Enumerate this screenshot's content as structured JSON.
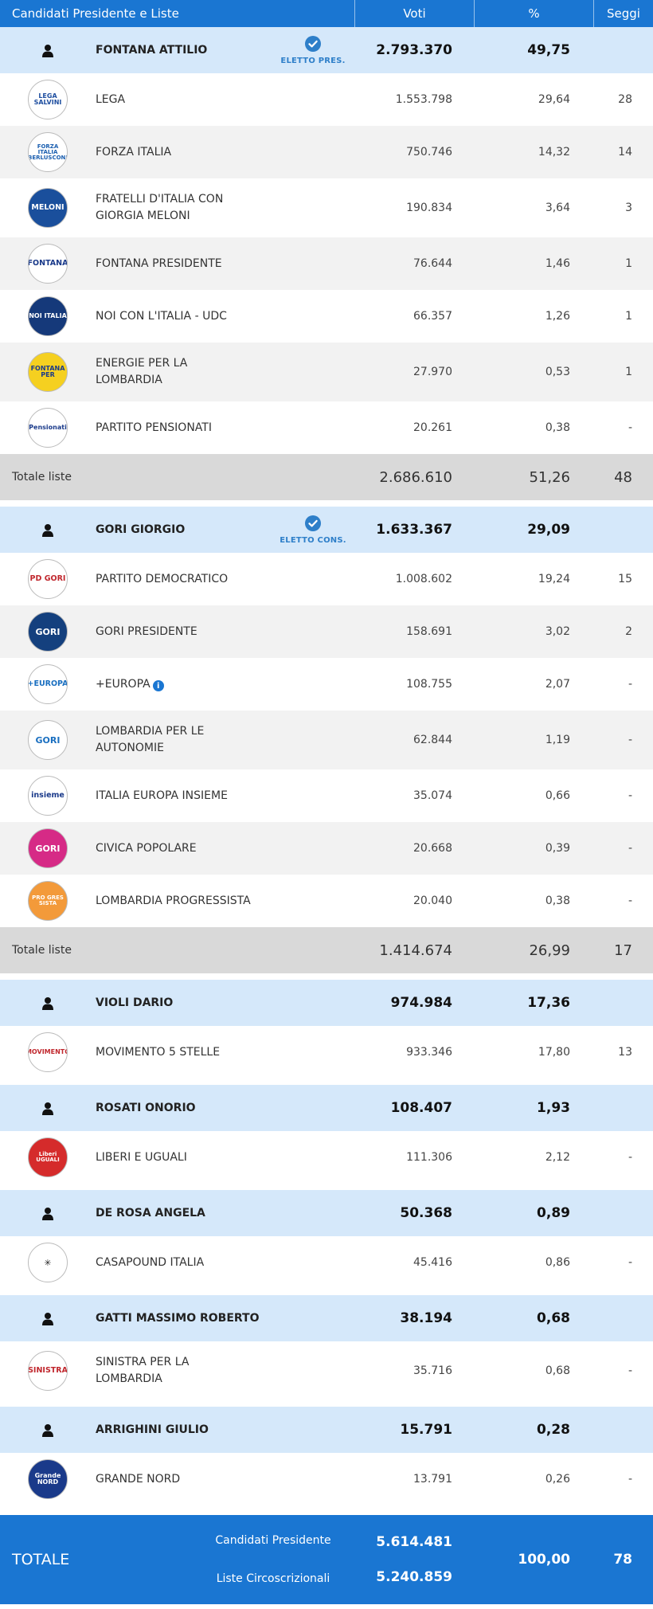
{
  "header": {
    "name": "Candidati Presidente e Liste",
    "voti": "Voti",
    "pct": "%",
    "seggi": "Seggi"
  },
  "blocks": [
    {
      "candidate": {
        "name": "FONTANA ATTILIO",
        "elected": "ELETTO PRES.",
        "votes": "2.793.370",
        "pct": "49,75"
      },
      "lists": [
        {
          "name": "LEGA",
          "votes": "1.553.798",
          "pct": "29,64",
          "seggi": "28",
          "logo": {
            "text": "LEGA SALVINI",
            "bg": "#ffffff",
            "fg": "#1f4fa0",
            "icon": "lega-logo-icon"
          }
        },
        {
          "name": "FORZA ITALIA",
          "votes": "750.746",
          "pct": "14,32",
          "seggi": "14",
          "logo": {
            "text": "FORZA ITALIA BERLUSCONI",
            "bg": "#ffffff",
            "fg": "#1b5fb0",
            "icon": "forza-italia-logo-icon"
          }
        },
        {
          "name": "FRATELLI D'ITALIA CON GIORGIA MELONI",
          "votes": "190.834",
          "pct": "3,64",
          "seggi": "3",
          "logo": {
            "text": "MELONI",
            "bg": "#1a4f9c",
            "fg": "#ffffff",
            "icon": "fratelli-italia-logo-icon"
          }
        },
        {
          "name": "FONTANA PRESIDENTE",
          "votes": "76.644",
          "pct": "1,46",
          "seggi": "1",
          "logo": {
            "text": "FONTANA",
            "bg": "#ffffff",
            "fg": "#1a3a8a",
            "icon": "fontana-presidente-logo-icon"
          }
        },
        {
          "name": "NOI CON L'ITALIA - UDC",
          "votes": "66.357",
          "pct": "1,26",
          "seggi": "1",
          "logo": {
            "text": "NOI ITALIA",
            "bg": "#15397a",
            "fg": "#ffffff",
            "icon": "noi-italia-logo-icon"
          }
        },
        {
          "name": "ENERGIE PER LA LOMBARDIA",
          "votes": "27.970",
          "pct": "0,53",
          "seggi": "1",
          "logo": {
            "text": "FONTANA PER",
            "bg": "#f5d020",
            "fg": "#1a3a8a",
            "icon": "energie-lombardia-logo-icon"
          }
        },
        {
          "name": "PARTITO PENSIONATI",
          "votes": "20.261",
          "pct": "0,38",
          "seggi": "-",
          "logo": {
            "text": "Pensionati",
            "bg": "#ffffff",
            "fg": "#1a3a8a",
            "icon": "partito-pensionati-logo-icon"
          }
        }
      ],
      "total": {
        "label": "Totale liste",
        "votes": "2.686.610",
        "pct": "51,26",
        "seggi": "48"
      }
    },
    {
      "candidate": {
        "name": "GORI GIORGIO",
        "elected": "ELETTO CONS.",
        "votes": "1.633.367",
        "pct": "29,09"
      },
      "lists": [
        {
          "name": "PARTITO DEMOCRATICO",
          "votes": "1.008.602",
          "pct": "19,24",
          "seggi": "15",
          "logo": {
            "text": "PD GORI",
            "bg": "#ffffff",
            "fg": "#c0272d",
            "icon": "pd-logo-icon"
          }
        },
        {
          "name": "GORI PRESIDENTE",
          "votes": "158.691",
          "pct": "3,02",
          "seggi": "2",
          "logo": {
            "text": "GORI",
            "bg": "#14407e",
            "fg": "#ffffff",
            "icon": "gori-presidente-logo-icon"
          }
        },
        {
          "name": "+EUROPA",
          "votes": "108.755",
          "pct": "2,07",
          "seggi": "-",
          "info": true,
          "logo": {
            "text": "+EUROPA",
            "bg": "#ffffff",
            "fg": "#1a6fc0",
            "icon": "piu-europa-logo-icon"
          }
        },
        {
          "name": "LOMBARDIA PER LE AUTONOMIE",
          "votes": "62.844",
          "pct": "1,19",
          "seggi": "-",
          "logo": {
            "text": "GORI",
            "bg": "#ffffff",
            "fg": "#1a6fc0",
            "icon": "lombardia-autonomie-logo-icon"
          }
        },
        {
          "name": "ITALIA EUROPA INSIEME",
          "votes": "35.074",
          "pct": "0,66",
          "seggi": "-",
          "logo": {
            "text": "insieme",
            "bg": "#ffffff",
            "fg": "#1a3a8a",
            "icon": "italia-europa-insieme-logo-icon"
          }
        },
        {
          "name": "CIVICA POPOLARE",
          "votes": "20.668",
          "pct": "0,39",
          "seggi": "-",
          "logo": {
            "text": "GORI",
            "bg": "#d62a86",
            "fg": "#ffffff",
            "icon": "civica-popolare-logo-icon"
          }
        },
        {
          "name": "LOMBARDIA PROGRESSISTA",
          "votes": "20.040",
          "pct": "0,38",
          "seggi": "-",
          "logo": {
            "text": "PRO GRES SISTA",
            "bg": "#f39a3a",
            "fg": "#ffffff",
            "icon": "lombardia-progressista-logo-icon"
          }
        }
      ],
      "total": {
        "label": "Totale liste",
        "votes": "1.414.674",
        "pct": "26,99",
        "seggi": "17"
      }
    },
    {
      "candidate": {
        "name": "VIOLI DARIO",
        "elected": "",
        "votes": "974.984",
        "pct": "17,36"
      },
      "lists": [
        {
          "name": "MOVIMENTO 5 STELLE",
          "votes": "933.346",
          "pct": "17,80",
          "seggi": "13",
          "logo": {
            "text": "MOVIMENTO",
            "bg": "#ffffff",
            "fg": "#c0272d",
            "icon": "m5s-logo-icon"
          }
        }
      ]
    },
    {
      "candidate": {
        "name": "ROSATI ONORIO",
        "elected": "",
        "votes": "108.407",
        "pct": "1,93"
      },
      "lists": [
        {
          "name": "LIBERI E UGUALI",
          "votes": "111.306",
          "pct": "2,12",
          "seggi": "-",
          "logo": {
            "text": "Liberi UGUALI",
            "bg": "#d52b2b",
            "fg": "#ffffff",
            "icon": "liberi-uguali-logo-icon"
          }
        }
      ]
    },
    {
      "candidate": {
        "name": "DE ROSA ANGELA",
        "elected": "",
        "votes": "50.368",
        "pct": "0,89"
      },
      "lists": [
        {
          "name": "CASAPOUND ITALIA",
          "votes": "45.416",
          "pct": "0,86",
          "seggi": "-",
          "logo": {
            "text": "✳",
            "bg": "#ffffff",
            "fg": "#222222",
            "icon": "casapound-logo-icon"
          }
        }
      ]
    },
    {
      "candidate": {
        "name": "GATTI MASSIMO ROBERTO",
        "elected": "",
        "votes": "38.194",
        "pct": "0,68"
      },
      "lists": [
        {
          "name": "SINISTRA PER LA LOMBARDIA",
          "votes": "35.716",
          "pct": "0,68",
          "seggi": "-",
          "logo": {
            "text": "SINISTRA",
            "bg": "#ffffff",
            "fg": "#c0272d",
            "icon": "sinistra-lombardia-logo-icon"
          }
        }
      ]
    },
    {
      "candidate": {
        "name": "ARRIGHINI GIULIO",
        "elected": "",
        "votes": "15.791",
        "pct": "0,28"
      },
      "lists": [
        {
          "name": "GRANDE NORD",
          "votes": "13.791",
          "pct": "0,26",
          "seggi": "-",
          "logo": {
            "text": "Grande NORD",
            "bg": "#1a3a8a",
            "fg": "#ffffff",
            "icon": "grande-nord-logo-icon"
          }
        }
      ]
    }
  ],
  "grand_total": {
    "label": "TOTALE",
    "cand_label": "Candidati Presidente",
    "cand_votes": "5.614.481",
    "list_label": "Liste Circoscrizionali",
    "list_votes": "5.240.859",
    "pct": "100,00",
    "seggi": "78"
  }
}
